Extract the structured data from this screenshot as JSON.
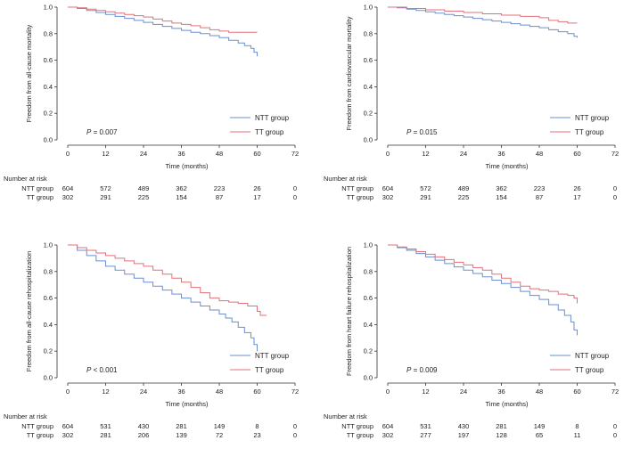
{
  "chart_data": [
    {
      "type": "line",
      "ylabel": "Freedom from all-cause mortality",
      "xlabel": "Time (months)",
      "xlim": [
        0,
        72
      ],
      "ylim": [
        0,
        1
      ],
      "xticks": [
        "0",
        "12",
        "24",
        "36",
        "48",
        "60",
        "72"
      ],
      "yticks": [
        "0.0",
        "0.2",
        "0.4",
        "0.6",
        "0.8",
        "1.0"
      ],
      "p_prefix": "P",
      "p_value": " = 0.007",
      "legend": [
        "NTT group",
        "TT group"
      ],
      "series": [
        {
          "name": "NTT group",
          "color": "#6b8fd0",
          "x": [
            0,
            3,
            6,
            9,
            12,
            15,
            18,
            21,
            24,
            27,
            30,
            33,
            36,
            39,
            42,
            45,
            48,
            51,
            54,
            56,
            58,
            59,
            60
          ],
          "y": [
            1.0,
            0.99,
            0.975,
            0.96,
            0.945,
            0.93,
            0.915,
            0.9,
            0.885,
            0.87,
            0.855,
            0.84,
            0.825,
            0.81,
            0.8,
            0.785,
            0.77,
            0.75,
            0.73,
            0.71,
            0.69,
            0.66,
            0.63
          ]
        },
        {
          "name": "TT group",
          "color": "#e0707a",
          "x": [
            0,
            3,
            6,
            9,
            12,
            15,
            18,
            21,
            24,
            27,
            30,
            33,
            36,
            39,
            42,
            45,
            48,
            51,
            54,
            57,
            60
          ],
          "y": [
            1.0,
            0.995,
            0.985,
            0.975,
            0.965,
            0.955,
            0.945,
            0.935,
            0.925,
            0.91,
            0.895,
            0.88,
            0.87,
            0.86,
            0.845,
            0.83,
            0.82,
            0.81,
            0.81,
            0.81,
            0.81
          ]
        }
      ],
      "risk_table": {
        "header": "Number at risk",
        "rows": [
          {
            "label": "NTT group",
            "values": [
              "604",
              "572",
              "489",
              "362",
              "223",
              "26",
              "0"
            ]
          },
          {
            "label": "TT group",
            "values": [
              "302",
              "291",
              "225",
              "154",
              "87",
              "17",
              "0"
            ]
          }
        ]
      }
    },
    {
      "type": "line",
      "ylabel": "Freedom from cardiovascular mortality",
      "xlabel": "Time (months)",
      "xlim": [
        0,
        72
      ],
      "ylim": [
        0,
        1
      ],
      "xticks": [
        "0",
        "12",
        "24",
        "36",
        "48",
        "60",
        "72"
      ],
      "yticks": [
        "0.0",
        "0.2",
        "0.4",
        "0.6",
        "0.8",
        "1.0"
      ],
      "p_prefix": "P",
      "p_value": " = 0.015",
      "legend": [
        "NTT group",
        "TT group"
      ],
      "series": [
        {
          "name": "NTT group",
          "color": "#6b8fd0",
          "x": [
            0,
            3,
            6,
            9,
            12,
            15,
            18,
            21,
            24,
            27,
            30,
            33,
            36,
            39,
            42,
            45,
            48,
            51,
            54,
            57,
            59,
            60
          ],
          "y": [
            1.0,
            0.995,
            0.985,
            0.975,
            0.965,
            0.955,
            0.945,
            0.935,
            0.925,
            0.915,
            0.905,
            0.895,
            0.885,
            0.875,
            0.865,
            0.855,
            0.845,
            0.83,
            0.815,
            0.8,
            0.78,
            0.77
          ]
        },
        {
          "name": "TT group",
          "color": "#e0707a",
          "x": [
            0,
            6,
            12,
            18,
            24,
            30,
            36,
            42,
            48,
            51,
            54,
            57,
            60
          ],
          "y": [
            1.0,
            0.99,
            0.98,
            0.97,
            0.96,
            0.95,
            0.94,
            0.93,
            0.92,
            0.9,
            0.89,
            0.88,
            0.88
          ]
        }
      ],
      "risk_table": {
        "header": "Number at risk",
        "rows": [
          {
            "label": "NTT group",
            "values": [
              "604",
              "572",
              "489",
              "362",
              "223",
              "26",
              "0"
            ]
          },
          {
            "label": "TT group",
            "values": [
              "302",
              "291",
              "225",
              "154",
              "87",
              "17",
              "0"
            ]
          }
        ]
      }
    },
    {
      "type": "line",
      "ylabel": "Freedom from all-cause rehospitalization",
      "xlabel": "Time (months)",
      "xlim": [
        0,
        72
      ],
      "ylim": [
        0,
        1
      ],
      "xticks": [
        "0",
        "12",
        "24",
        "36",
        "48",
        "60",
        "72"
      ],
      "yticks": [
        "0.0",
        "0.2",
        "0.4",
        "0.6",
        "0.8",
        "1.0"
      ],
      "p_prefix": "P",
      "p_value": " < 0.001",
      "legend": [
        "NTT group",
        "TT group"
      ],
      "series": [
        {
          "name": "NTT group",
          "color": "#6b8fd0",
          "x": [
            0,
            3,
            6,
            9,
            12,
            15,
            18,
            21,
            24,
            27,
            30,
            33,
            36,
            39,
            42,
            45,
            48,
            50,
            52,
            54,
            56,
            58,
            59,
            60
          ],
          "y": [
            1.0,
            0.96,
            0.92,
            0.88,
            0.84,
            0.81,
            0.78,
            0.75,
            0.72,
            0.69,
            0.66,
            0.63,
            0.6,
            0.57,
            0.54,
            0.51,
            0.48,
            0.45,
            0.42,
            0.38,
            0.34,
            0.3,
            0.25,
            0.2
          ]
        },
        {
          "name": "TT group",
          "color": "#e0707a",
          "x": [
            0,
            3,
            6,
            9,
            12,
            15,
            18,
            21,
            24,
            27,
            30,
            33,
            36,
            39,
            42,
            45,
            48,
            51,
            54,
            57,
            60,
            61,
            63
          ],
          "y": [
            1.0,
            0.98,
            0.96,
            0.94,
            0.92,
            0.9,
            0.88,
            0.86,
            0.84,
            0.81,
            0.78,
            0.75,
            0.72,
            0.68,
            0.64,
            0.6,
            0.58,
            0.57,
            0.56,
            0.54,
            0.5,
            0.47,
            0.47
          ]
        }
      ],
      "risk_table": {
        "header": "Number at risk",
        "rows": [
          {
            "label": "NTT group",
            "values": [
              "604",
              "531",
              "430",
              "281",
              "149",
              "8",
              "0"
            ]
          },
          {
            "label": "TT group",
            "values": [
              "302",
              "281",
              "206",
              "139",
              "72",
              "23",
              "0"
            ]
          }
        ]
      }
    },
    {
      "type": "line",
      "ylabel": "Freedom from heart failure rehospitalization",
      "xlabel": "Time (months)",
      "xlim": [
        0,
        72
      ],
      "ylim": [
        0,
        1
      ],
      "xticks": [
        "0",
        "12",
        "24",
        "36",
        "48",
        "60",
        "72"
      ],
      "yticks": [
        "0.0",
        "0.2",
        "0.4",
        "0.6",
        "0.8",
        "1.0"
      ],
      "p_prefix": "P",
      "p_value": " = 0.009",
      "legend": [
        "NTT group",
        "TT group"
      ],
      "series": [
        {
          "name": "NTT group",
          "color": "#6b8fd0",
          "x": [
            0,
            3,
            6,
            9,
            12,
            15,
            18,
            21,
            24,
            27,
            30,
            33,
            36,
            39,
            42,
            45,
            48,
            51,
            54,
            56,
            58,
            59,
            60
          ],
          "y": [
            1.0,
            0.98,
            0.96,
            0.935,
            0.91,
            0.885,
            0.86,
            0.835,
            0.81,
            0.785,
            0.76,
            0.735,
            0.71,
            0.68,
            0.65,
            0.62,
            0.59,
            0.55,
            0.51,
            0.47,
            0.42,
            0.36,
            0.32
          ]
        },
        {
          "name": "TT group",
          "color": "#e0707a",
          "x": [
            0,
            3,
            6,
            9,
            12,
            15,
            18,
            21,
            24,
            27,
            30,
            33,
            36,
            39,
            42,
            45,
            48,
            51,
            54,
            57,
            59,
            60
          ],
          "y": [
            1.0,
            0.985,
            0.97,
            0.95,
            0.93,
            0.91,
            0.89,
            0.87,
            0.85,
            0.83,
            0.81,
            0.78,
            0.75,
            0.72,
            0.69,
            0.67,
            0.66,
            0.65,
            0.63,
            0.62,
            0.6,
            0.56
          ]
        }
      ],
      "risk_table": {
        "header": "Number at risk",
        "rows": [
          {
            "label": "NTT group",
            "values": [
              "604",
              "531",
              "430",
              "281",
              "149",
              "8",
              "0"
            ]
          },
          {
            "label": "TT group",
            "values": [
              "302",
              "277",
              "197",
              "128",
              "65",
              "11",
              "0"
            ]
          }
        ]
      }
    }
  ]
}
